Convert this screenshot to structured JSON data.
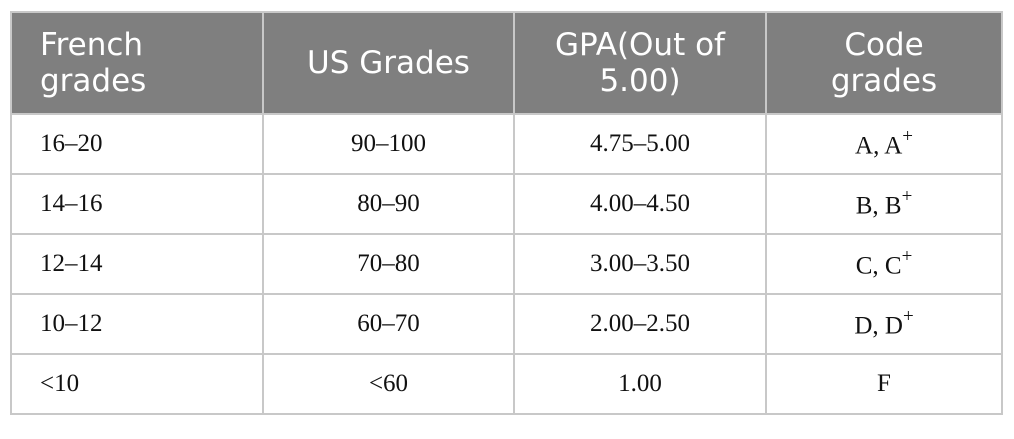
{
  "table": {
    "header": [
      "French grades",
      "US Grades",
      "GPA(Out of 5.00)",
      "Code grades"
    ],
    "rows": [
      [
        "16–20",
        "90–100",
        "4.75–5.00",
        {
          "text": "A, A",
          "sup": "+"
        }
      ],
      [
        "14–16",
        "80–90",
        "4.00–4.50",
        {
          "text": "B, B",
          "sup": "+"
        }
      ],
      [
        "12–14",
        "70–80",
        "3.00–3.50",
        {
          "text": "C, C",
          "sup": "+"
        }
      ],
      [
        "10–12",
        "60–70",
        "2.00–2.50",
        {
          "text": "D, D",
          "sup": "+"
        }
      ],
      [
        "<10",
        "<60",
        "1.00",
        "F"
      ]
    ]
  }
}
